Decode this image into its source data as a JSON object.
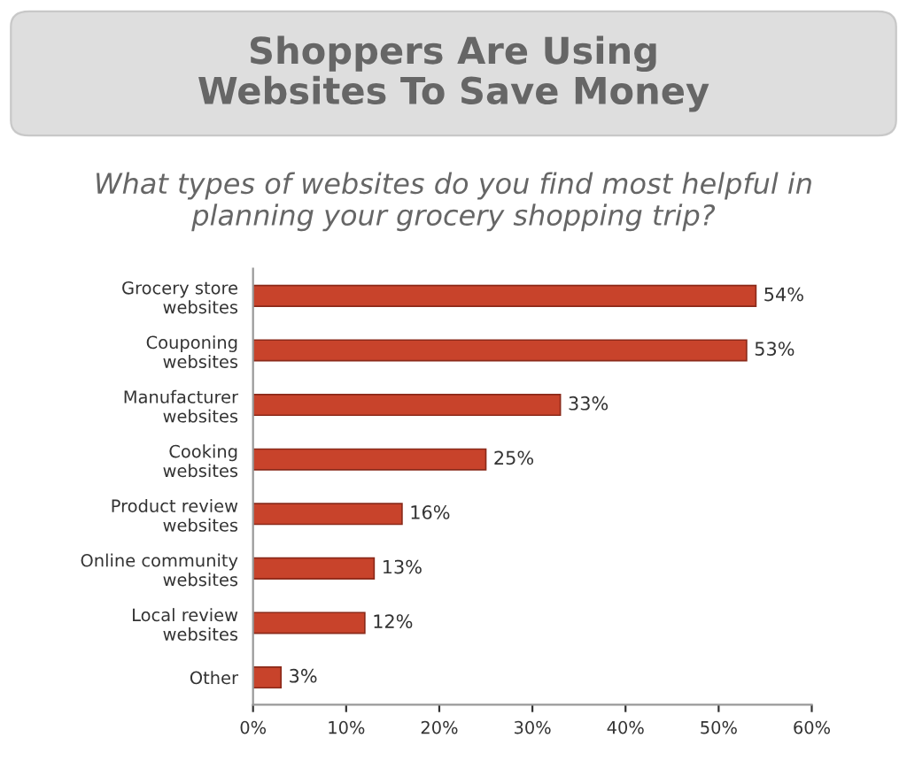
{
  "chart_data": {
    "type": "bar",
    "orientation": "horizontal",
    "title": "Shoppers Are Using\nWebsites To Save Money",
    "subtitle": "What types of websites do you find most helpful in\nplanning your grocery shopping trip?",
    "categories": [
      "Grocery store\nwebsites",
      "Couponing\nwebsites",
      "Manufacturer\nwebsites",
      "Cooking\nwebsites",
      "Product review\nwebsites",
      "Online community\nwebsites",
      "Local review\nwebsites",
      "Other"
    ],
    "values": [
      54,
      53,
      33,
      25,
      16,
      13,
      12,
      3
    ],
    "value_labels": [
      "54%",
      "53%",
      "33%",
      "25%",
      "16%",
      "13%",
      "12%",
      "3%"
    ],
    "color": "#c8432b",
    "xlim": [
      0,
      60
    ],
    "xticks": [
      {
        "value": 0,
        "label": "0%"
      },
      {
        "value": 10,
        "label": "10%"
      },
      {
        "value": 20,
        "label": "20%"
      },
      {
        "value": 30,
        "label": "30%"
      },
      {
        "value": 40,
        "label": "40%"
      },
      {
        "value": 50,
        "label": "50%"
      },
      {
        "value": 60,
        "label": "60%"
      }
    ],
    "grid": false,
    "legend": false
  }
}
